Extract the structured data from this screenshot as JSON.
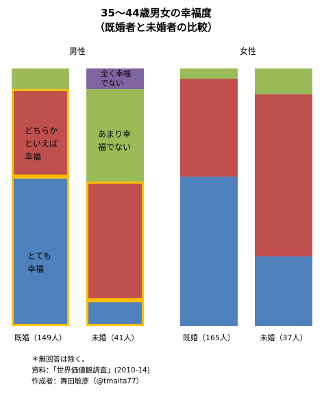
{
  "title_line1": "35〜44歳男女の幸福度",
  "title_line2": "（既婚者と未婚者の比較）",
  "colors": {
    "very_happy": "#4f81bd",
    "somewhat_happy": "#c0504d",
    "not_very_happy": "#9bbb59",
    "not_at_all_happy": "#8064a2",
    "highlight": "#ffc000"
  },
  "chart_data": {
    "type": "bar",
    "stacked": true,
    "normalized": true,
    "groups": [
      "男性",
      "女性"
    ],
    "categories": [
      "既婚（149人）",
      "未婚（41人）",
      "既婚（165人）",
      "未婚（37人）"
    ],
    "series": [
      {
        "name": "とても幸福",
        "values": [
          0.58,
          0.1,
          0.58,
          0.27
        ],
        "color": "#4f81bd"
      },
      {
        "name": "どちらかといえば幸福",
        "values": [
          0.34,
          0.46,
          0.38,
          0.63
        ],
        "color": "#c0504d"
      },
      {
        "name": "あまり幸福でない",
        "values": [
          0.08,
          0.36,
          0.04,
          0.1
        ],
        "color": "#9bbb59"
      },
      {
        "name": "全く幸福でない",
        "values": [
          0.0,
          0.08,
          0.0,
          0.0
        ],
        "color": "#8064a2"
      }
    ],
    "bar_labels": {
      "m_married_somewhat": [
        "どちらか",
        "といえば",
        "幸福"
      ],
      "m_married_very": [
        "とても",
        "幸福"
      ],
      "m_single_not_very": [
        "あまり幸",
        "福でない"
      ],
      "m_single_not_at_all": [
        "全く幸福",
        "でない"
      ]
    }
  },
  "notes": [
    "＊無回答は除く。",
    "資料：「世界価値観調査」(2010-14)",
    "作成者：舞田敏彦（@tmaita77）"
  ]
}
